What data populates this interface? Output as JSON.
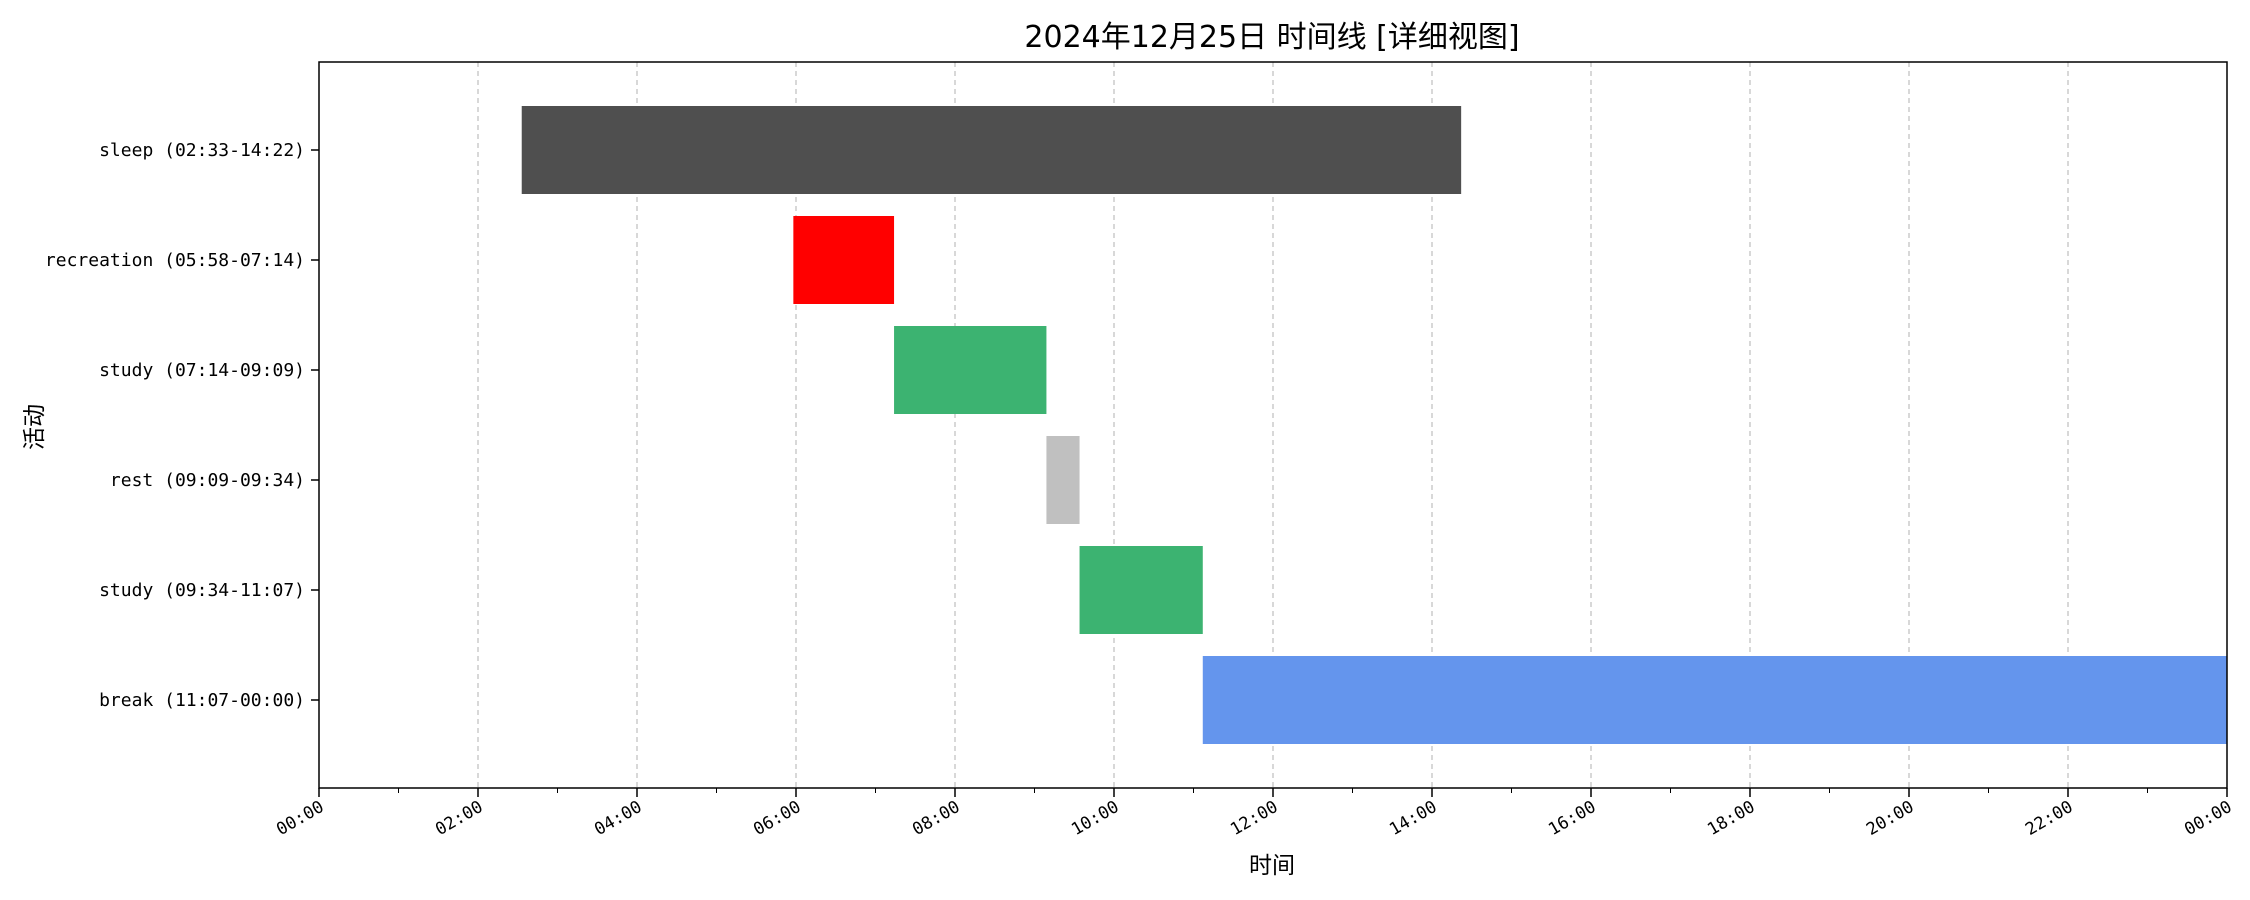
{
  "chart_data": {
    "type": "bar",
    "orientation": "horizontal-timeline",
    "title": "2024年12月25日 时间线 [详细视图]",
    "xlabel": "时间",
    "ylabel": "活动",
    "xlim": [
      "00:00",
      "24:00"
    ],
    "x_ticks": [
      "00:00",
      "02:00",
      "04:00",
      "06:00",
      "08:00",
      "10:00",
      "12:00",
      "14:00",
      "16:00",
      "18:00",
      "20:00",
      "22:00",
      "00:00"
    ],
    "grid": "x-dashed",
    "legend": "none",
    "rows": [
      {
        "label": "sleep (02:33-14:22)",
        "start": "02:33",
        "end": "14:22",
        "color": "#4f4f4f"
      },
      {
        "label": "recreation (05:58-07:14)",
        "start": "05:58",
        "end": "07:14",
        "color": "#ff0000"
      },
      {
        "label": "study (07:14-09:09)",
        "start": "07:14",
        "end": "09:09",
        "color": "#3cb371"
      },
      {
        "label": "rest (09:09-09:34)",
        "start": "09:09",
        "end": "09:34",
        "color": "#c0c0c0"
      },
      {
        "label": "study (09:34-11:07)",
        "start": "09:34",
        "end": "11:07",
        "color": "#3cb371"
      },
      {
        "label": "break (11:07-00:00)",
        "start": "11:07",
        "end": "24:00",
        "color": "#6495ed"
      }
    ]
  }
}
